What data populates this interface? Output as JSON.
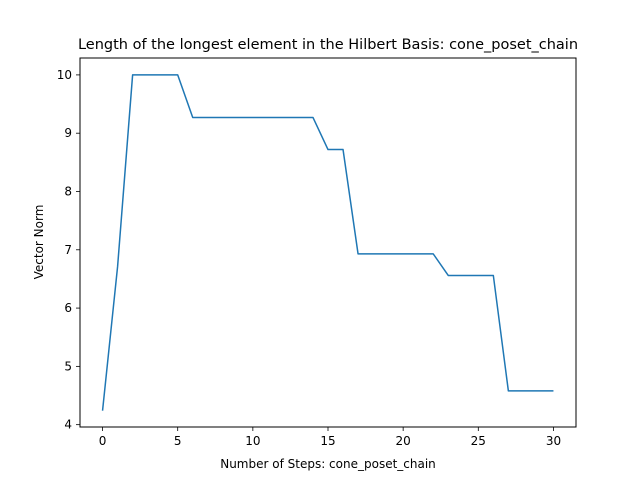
{
  "chart_data": {
    "type": "line",
    "title": "Length of the longest element in the Hilbert Basis: cone_poset_chain",
    "xlabel": "Number of Steps: cone_poset_chain",
    "ylabel": "Vector Norm",
    "xlim": [
      -1.5,
      31.5
    ],
    "ylim": [
      3.96,
      10.29
    ],
    "xticks": [
      0,
      5,
      10,
      15,
      20,
      25,
      30
    ],
    "yticks": [
      4,
      5,
      6,
      7,
      8,
      9,
      10
    ],
    "grid": false,
    "legend": "none",
    "series": [
      {
        "color": "#1f77b4",
        "x": [
          0,
          1,
          2,
          3,
          4,
          5,
          6,
          7,
          8,
          9,
          10,
          11,
          12,
          13,
          14,
          15,
          16,
          17,
          18,
          19,
          20,
          21,
          22,
          23,
          24,
          25,
          26,
          27,
          28,
          29,
          30
        ],
        "y": [
          4.24,
          6.71,
          10.0,
          10.0,
          10.0,
          10.0,
          9.27,
          9.27,
          9.27,
          9.27,
          9.27,
          9.27,
          9.27,
          9.27,
          9.27,
          8.72,
          8.72,
          6.93,
          6.93,
          6.93,
          6.93,
          6.93,
          6.93,
          6.56,
          6.56,
          6.56,
          6.56,
          4.58,
          4.58,
          4.58,
          4.58
        ]
      }
    ]
  }
}
